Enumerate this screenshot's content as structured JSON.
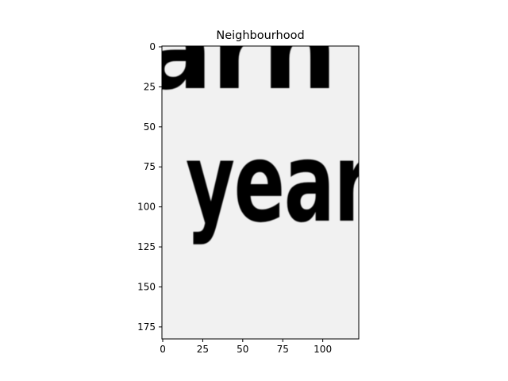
{
  "chart_data": {
    "type": "heatmap",
    "title": "Neighbourhood",
    "subject": "grayscale image crop showing fragments of printed text",
    "visible_text_in_image": {
      "top_fragment": "arn",
      "main_word": "year"
    },
    "image_shape": [
      183,
      123
    ],
    "colormap": "gray",
    "xlim": [
      -0.5,
      122.5
    ],
    "ylim": [
      182.5,
      -0.5
    ],
    "xticks": [
      0,
      25,
      50,
      75,
      100
    ],
    "yticks": [
      0,
      25,
      50,
      75,
      100,
      125,
      150,
      175
    ],
    "grid": false,
    "legend": "none"
  },
  "colors": {
    "background": "#ffffff",
    "paper": "#f1f1f1",
    "ink": "#1e1e1e",
    "axes": "#000000"
  }
}
